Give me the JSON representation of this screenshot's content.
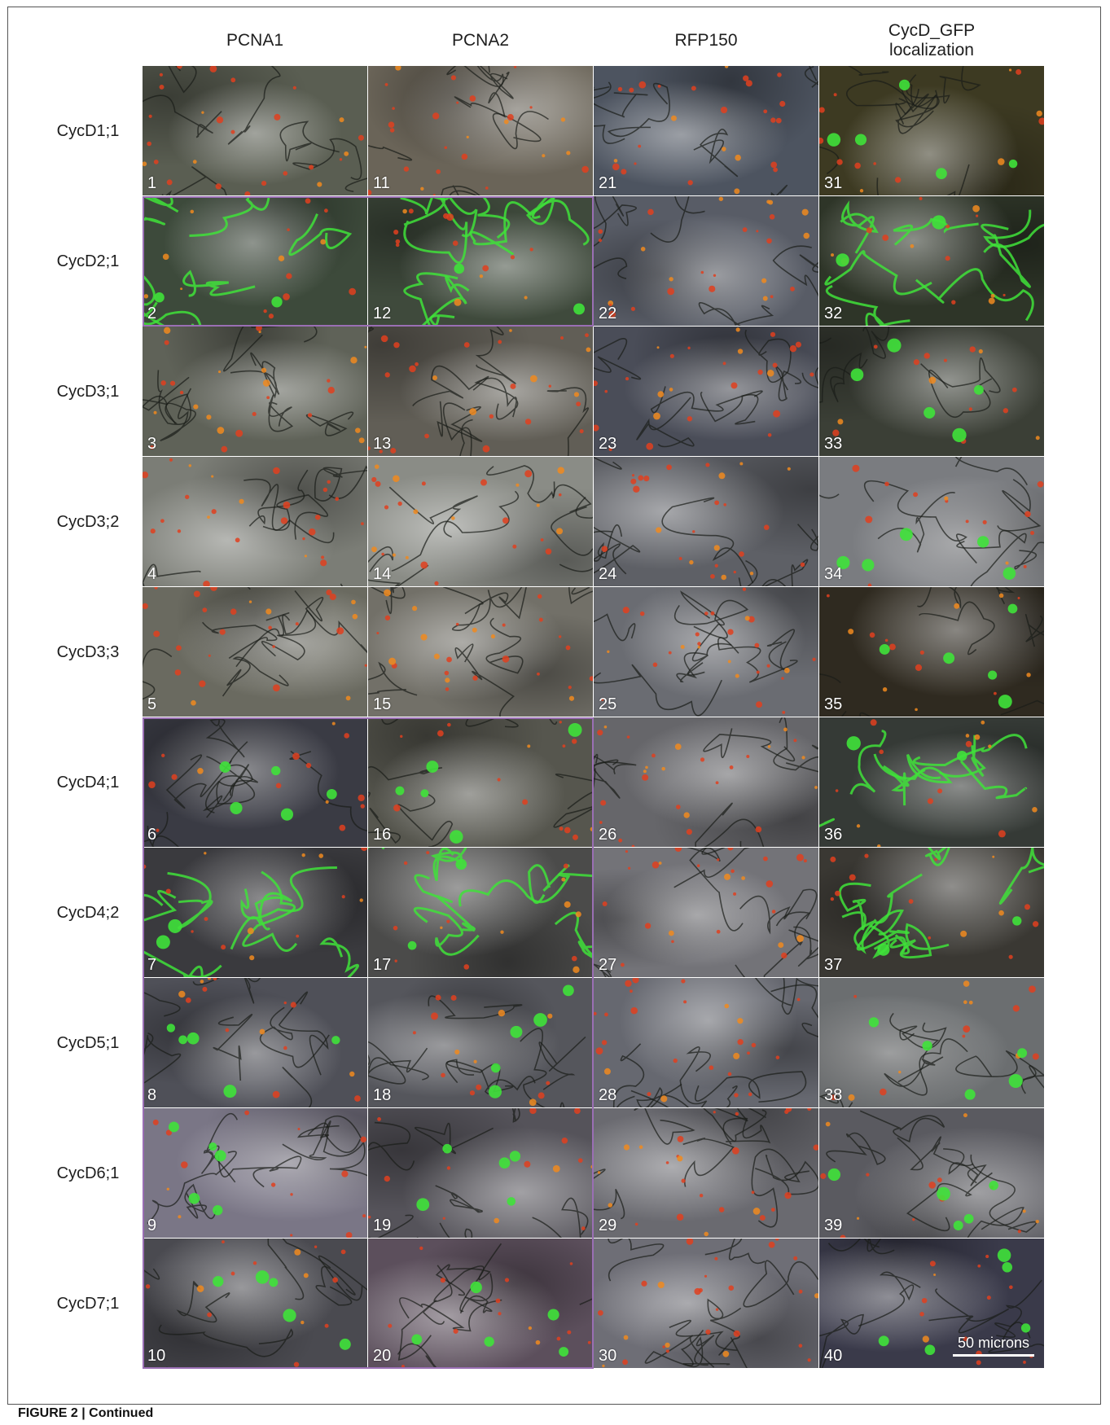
{
  "columns": [
    "PCNA1",
    "PCNA2",
    "RFP150",
    "CycD_GFP\nlocalization"
  ],
  "rows": [
    "CycD1;1",
    "CycD2;1",
    "CycD3;1",
    "CycD3;2",
    "CycD3;3",
    "CycD4;1",
    "CycD4;2",
    "CycD5;1",
    "CycD6;1",
    "CycD7;1"
  ],
  "panel_numbers": [
    [
      "1",
      "11",
      "21",
      "31"
    ],
    [
      "2",
      "12",
      "22",
      "32"
    ],
    [
      "3",
      "13",
      "23",
      "33"
    ],
    [
      "4",
      "14",
      "24",
      "34"
    ],
    [
      "5",
      "15",
      "25",
      "35"
    ],
    [
      "6",
      "16",
      "26",
      "36"
    ],
    [
      "7",
      "17",
      "27",
      "37"
    ],
    [
      "8",
      "18",
      "28",
      "38"
    ],
    [
      "9",
      "19",
      "29",
      "39"
    ],
    [
      "10",
      "20",
      "30",
      "40"
    ]
  ],
  "scale_bar_label": "50 microns",
  "caption": "FIGURE 2 | Continued",
  "colors": {
    "highlight_border": "#9a6fb4",
    "gfp_green": "#3fe23a",
    "rfp_red": "#e0401e"
  }
}
